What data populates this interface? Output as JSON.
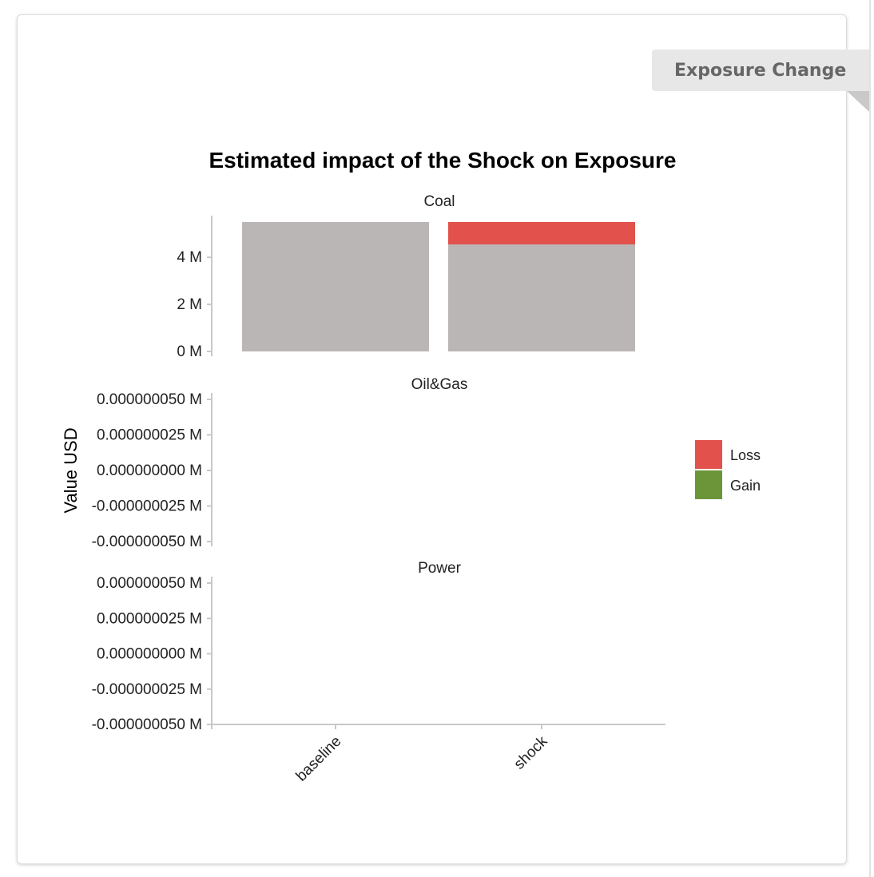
{
  "panel": {
    "ribbon_label": "Exposure Change"
  },
  "colors": {
    "baseline": "#bab6b5",
    "loss": "#e2514c",
    "gain": "#6b9538",
    "axis": "#c8c8c8",
    "text": "#222222"
  },
  "chart_data": {
    "type": "bar",
    "title": "Estimated impact of the Shock on Exposure",
    "ylabel": "Value USD",
    "xlabel": "",
    "categories": [
      "baseline",
      "shock"
    ],
    "legend": {
      "position": "right",
      "entries": [
        {
          "name": "Loss",
          "color": "#e2514c"
        },
        {
          "name": "Gain",
          "color": "#6b9538"
        }
      ]
    },
    "facets": [
      {
        "name": "Coal",
        "ylim": [
          0,
          5.5
        ],
        "ticks": [
          0,
          2,
          4
        ],
        "tick_labels": [
          "0 M",
          "2 M",
          "4 M"
        ],
        "stacks": [
          {
            "category": "baseline",
            "segments": [
              {
                "kind": "baseline",
                "value": 5.5
              }
            ]
          },
          {
            "category": "shock",
            "segments": [
              {
                "kind": "baseline",
                "value": 4.55
              },
              {
                "kind": "loss",
                "value": 0.95
              }
            ]
          }
        ]
      },
      {
        "name": "Oil&Gas",
        "ylim": [
          -5e-08,
          5e-08
        ],
        "ticks": [
          5e-08,
          2.5e-08,
          0,
          -2.5e-08,
          -5e-08
        ],
        "tick_labels": [
          "0.000000050 M",
          "0.000000025 M",
          "0.000000000 M",
          "-0.000000025 M",
          "-0.000000050 M"
        ],
        "stacks": []
      },
      {
        "name": "Power",
        "ylim": [
          -5e-08,
          5e-08
        ],
        "ticks": [
          5e-08,
          2.5e-08,
          0,
          -2.5e-08,
          -5e-08
        ],
        "tick_labels": [
          "0.000000050 M",
          "0.000000025 M",
          "0.000000000 M",
          "-0.000000025 M",
          "-0.000000050 M"
        ],
        "stacks": []
      }
    ]
  }
}
